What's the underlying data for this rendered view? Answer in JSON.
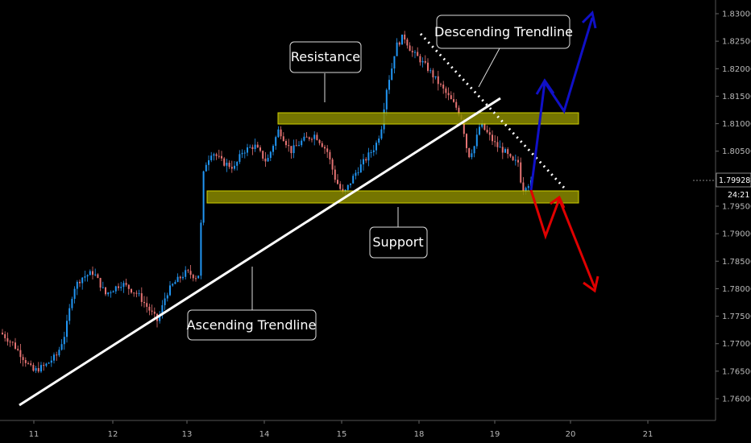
{
  "chart_data": {
    "type": "candlestick",
    "y_ticks": [
      "1.83000",
      "1.82500",
      "1.82000",
      "1.81500",
      "1.81000",
      "1.80500",
      "1.80000",
      "1.79500",
      "1.79000",
      "1.78500",
      "1.78000",
      "1.77500",
      "1.77000",
      "1.76500",
      "1.76000"
    ],
    "x_ticks": [
      "11",
      "12",
      "13",
      "14",
      "15",
      "18",
      "19",
      "20",
      "21"
    ],
    "current_price": "1.79928",
    "countdown": "24:21",
    "ylim": [
      1.757,
      1.833
    ],
    "zones": [
      {
        "name": "Resistance",
        "low": 1.8097,
        "high": 1.8117
      },
      {
        "name": "Support",
        "low": 1.7955,
        "high": 1.7975
      }
    ],
    "lines": [
      {
        "name": "Ascending Trendline",
        "style": "solid",
        "color": "#ffffff"
      },
      {
        "name": "Descending Trendline",
        "style": "dotted",
        "color": "#ffffff"
      }
    ],
    "scenario_arrows": [
      {
        "color": "#1010c8",
        "direction": "up"
      },
      {
        "color": "#e00000",
        "direction": "down"
      }
    ],
    "price_path": [
      [
        0,
        1.772
      ],
      [
        15,
        1.77
      ],
      [
        30,
        1.767
      ],
      [
        40,
        1.765
      ],
      [
        55,
        1.766
      ],
      [
        70,
        1.768
      ],
      [
        80,
        1.772
      ],
      [
        90,
        1.78
      ],
      [
        100,
        1.782
      ],
      [
        115,
        1.783
      ],
      [
        130,
        1.779
      ],
      [
        150,
        1.781
      ],
      [
        170,
        1.779
      ],
      [
        185,
        1.776
      ],
      [
        195,
        1.774
      ],
      [
        205,
        1.779
      ],
      [
        215,
        1.781
      ],
      [
        230,
        1.783
      ],
      [
        245,
        1.782
      ],
      [
        252,
        1.802
      ],
      [
        262,
        1.805
      ],
      [
        275,
        1.803
      ],
      [
        290,
        1.802
      ],
      [
        300,
        1.805
      ],
      [
        315,
        1.806
      ],
      [
        330,
        1.803
      ],
      [
        345,
        1.809
      ],
      [
        360,
        1.805
      ],
      [
        375,
        1.807
      ],
      [
        390,
        1.808
      ],
      [
        405,
        1.805
      ],
      [
        415,
        1.8
      ],
      [
        425,
        1.797
      ],
      [
        440,
        1.801
      ],
      [
        455,
        1.804
      ],
      [
        465,
        1.806
      ],
      [
        472,
        1.809
      ],
      [
        478,
        1.816
      ],
      [
        485,
        1.82
      ],
      [
        490,
        1.824
      ],
      [
        500,
        1.826
      ],
      [
        510,
        1.823
      ],
      [
        518,
        1.822
      ],
      [
        530,
        1.82
      ],
      [
        540,
        1.818
      ],
      [
        555,
        1.815
      ],
      [
        565,
        1.813
      ],
      [
        572,
        1.811
      ],
      [
        580,
        1.804
      ],
      [
        588,
        1.806
      ],
      [
        595,
        1.81
      ],
      [
        605,
        1.808
      ],
      [
        615,
        1.806
      ],
      [
        625,
        1.805
      ],
      [
        635,
        1.803
      ],
      [
        642,
        1.803
      ],
      [
        647,
        1.798
      ],
      [
        652,
        1.799
      ],
      [
        660,
        1.7993
      ]
    ],
    "grid": false,
    "legend": "none"
  },
  "annotations": {
    "resistance": "Resistance",
    "support": "Support",
    "ascending": "Ascending Trendline",
    "descending": "Descending Trendline"
  },
  "colors": {
    "background": "#000000",
    "bull": "#2196f3",
    "bear": "#e57373",
    "zone_fill": "#8a8a00",
    "zone_stroke": "#f5f500",
    "blue_arrow": "#1010c8",
    "red_arrow": "#e00000"
  }
}
